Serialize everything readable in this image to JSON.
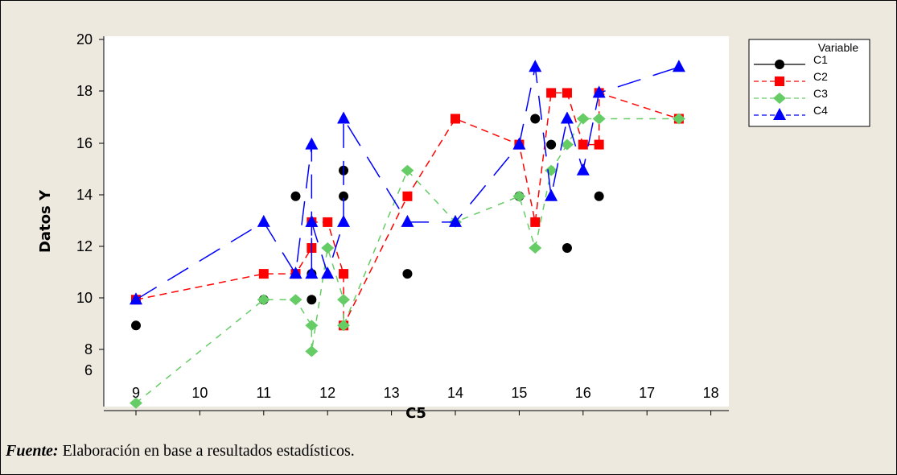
{
  "chart_data": {
    "type": "scatter",
    "title": "",
    "xlabel": "C5",
    "ylabel": "Datos Y",
    "y_tick_labels": [
      "20",
      "18",
      "16",
      "14",
      "12",
      "10",
      "8",
      "6"
    ],
    "x_tick_labels": [
      "9",
      "10",
      "11",
      "12",
      "13",
      "14",
      "15",
      "16",
      "17",
      "18"
    ],
    "legend": {
      "title": "Variable",
      "placement": "right",
      "entries": [
        "C1",
        "C2",
        "C3",
        "C4"
      ]
    },
    "series": [
      {
        "name": "C1",
        "color": "#000000",
        "marker": "circle",
        "line": "none",
        "points": [
          [
            9,
            8.9
          ],
          [
            11,
            9.9
          ],
          [
            11.5,
            13.9
          ],
          [
            11.75,
            9.9
          ],
          [
            11.75,
            10.9
          ],
          [
            12.25,
            13.9
          ],
          [
            12.25,
            14.9
          ],
          [
            13.25,
            10.9
          ],
          [
            15,
            13.9
          ],
          [
            15.25,
            16.9
          ],
          [
            15.5,
            15.9
          ],
          [
            15.75,
            11.9
          ],
          [
            16.25,
            13.9
          ]
        ]
      },
      {
        "name": "C2",
        "color": "#ff0000",
        "marker": "square",
        "line": "dashed",
        "points": [
          [
            9,
            9.9
          ],
          [
            11,
            10.9
          ],
          [
            11.5,
            10.9
          ],
          [
            11.75,
            11.9
          ],
          [
            11.75,
            12.9
          ],
          [
            12,
            12.9
          ],
          [
            12.25,
            10.9
          ],
          [
            12.25,
            8.9
          ],
          [
            13.25,
            13.9
          ],
          [
            14,
            16.9
          ],
          [
            15,
            15.9
          ],
          [
            15.25,
            12.9
          ],
          [
            15.5,
            17.9
          ],
          [
            15.75,
            17.9
          ],
          [
            16,
            15.9
          ],
          [
            16.25,
            15.9
          ],
          [
            16.25,
            17.9
          ],
          [
            17.5,
            16.9
          ]
        ]
      },
      {
        "name": "C3",
        "color": "#66cc66",
        "marker": "diamond",
        "line": "dashed",
        "points": [
          [
            9,
            5.9
          ],
          [
            11,
            9.9
          ],
          [
            11.5,
            9.9
          ],
          [
            11.75,
            8.9
          ],
          [
            11.75,
            7.9
          ],
          [
            12,
            11.9
          ],
          [
            12.25,
            9.9
          ],
          [
            12.25,
            8.9
          ],
          [
            13.25,
            14.9
          ],
          [
            14,
            12.9
          ],
          [
            15,
            13.9
          ],
          [
            15.25,
            11.9
          ],
          [
            15.5,
            14.9
          ],
          [
            15.75,
            15.9
          ],
          [
            16,
            16.9
          ],
          [
            16.25,
            16.9
          ],
          [
            17.5,
            16.9
          ]
        ]
      },
      {
        "name": "C4",
        "color": "#0000ff",
        "marker": "triangle",
        "line": "dashed",
        "points": [
          [
            9,
            9.9
          ],
          [
            11,
            12.9
          ],
          [
            11.5,
            10.9
          ],
          [
            11.75,
            15.9
          ],
          [
            11.75,
            10.9
          ],
          [
            11.75,
            12.9
          ],
          [
            12,
            10.9
          ],
          [
            12.25,
            12.9
          ],
          [
            12.25,
            16.9
          ],
          [
            13.25,
            12.9
          ],
          [
            14,
            12.9
          ],
          [
            15,
            15.9
          ],
          [
            15.25,
            18.9
          ],
          [
            15.5,
            13.9
          ],
          [
            15.75,
            16.9
          ],
          [
            16,
            14.9
          ],
          [
            16.25,
            17.9
          ],
          [
            17.5,
            18.9
          ]
        ]
      }
    ]
  },
  "footnote": {
    "label": "Fuente:",
    "text": " Elaboración en base a resultados estadísticos."
  }
}
